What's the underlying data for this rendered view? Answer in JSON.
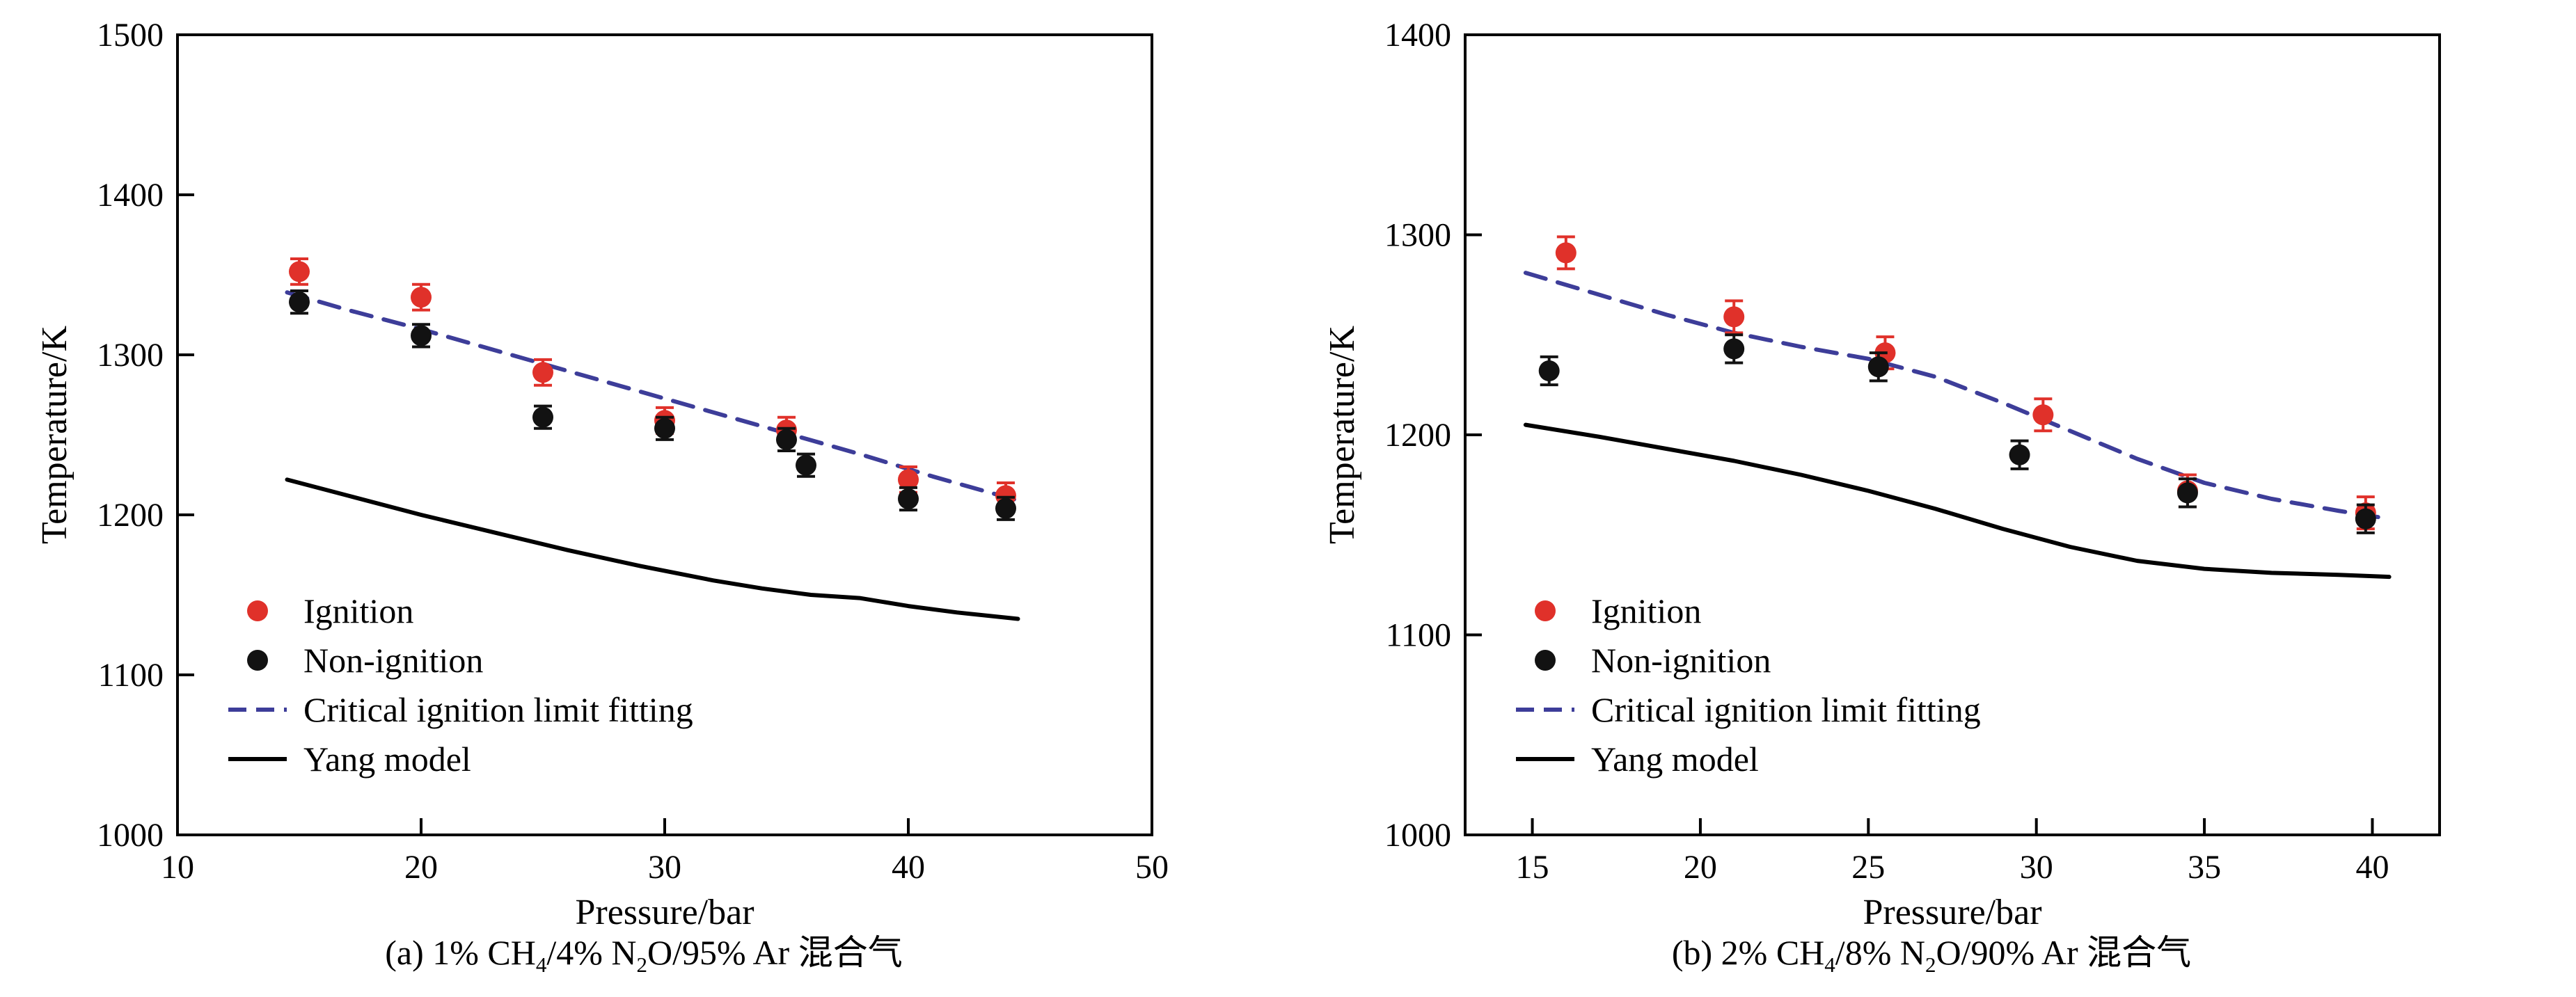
{
  "page": {
    "background": "#ffffff"
  },
  "colors": {
    "ignition": "#e0312a",
    "non_ignition": "#121212",
    "fitting": "#3d3d99",
    "yang": "#000000"
  },
  "chart_data": [
    {
      "type": "scatter-line",
      "panel": "a",
      "caption_text": "(a) 1% CH4/4% N2O/95% Ar 混合气",
      "caption_parts": [
        {
          "t": "(a) 1% CH"
        },
        {
          "t": "4",
          "sub": true
        },
        {
          "t": "/4% N"
        },
        {
          "t": "2",
          "sub": true
        },
        {
          "t": "O/95% Ar 混合气"
        }
      ],
      "xlabel": "Pressure/bar",
      "ylabel": "Temperature/K",
      "xlim": [
        10,
        50
      ],
      "ylim": [
        1000,
        1500
      ],
      "xticks": [
        10,
        20,
        30,
        40,
        50
      ],
      "yticks": [
        1000,
        1100,
        1200,
        1300,
        1400,
        1500
      ],
      "grid": false,
      "legend_position": "lower-left-inside",
      "legend": [
        {
          "label": "Ignition",
          "marker": "circle",
          "color": "#e0312a",
          "dash": false
        },
        {
          "label": "Non-ignition",
          "marker": "circle",
          "color": "#121212",
          "dash": false
        },
        {
          "label": "Critical ignition limit fitting",
          "marker": "line",
          "color": "#3d3d99",
          "dash": true
        },
        {
          "label": "Yang model",
          "marker": "line",
          "color": "#000000",
          "dash": false
        }
      ],
      "series": [
        {
          "name": "Ignition",
          "type": "scatter",
          "color": "#e0312a",
          "err": 8,
          "points": [
            [
              15,
              1352
            ],
            [
              20,
              1336
            ],
            [
              25,
              1289
            ],
            [
              30,
              1259
            ],
            [
              35,
              1253
            ],
            [
              40,
              1222
            ],
            [
              44,
              1212
            ]
          ]
        },
        {
          "name": "Non-ignition",
          "type": "scatter",
          "color": "#121212",
          "err": 7,
          "points": [
            [
              15,
              1333
            ],
            [
              20,
              1312
            ],
            [
              25,
              1261
            ],
            [
              30,
              1254
            ],
            [
              35,
              1247
            ],
            [
              35.8,
              1231
            ],
            [
              40,
              1210
            ],
            [
              44,
              1204
            ]
          ]
        },
        {
          "name": "Critical ignition limit fitting",
          "type": "line",
          "color": "#3d3d99",
          "dash": true,
          "points": [
            [
              14.5,
              1339
            ],
            [
              17,
              1328
            ],
            [
              20,
              1316
            ],
            [
              23,
              1303
            ],
            [
              26,
              1290
            ],
            [
              29,
              1277
            ],
            [
              32,
              1264
            ],
            [
              35,
              1251
            ],
            [
              38,
              1238
            ],
            [
              41,
              1224
            ],
            [
              44.5,
              1209
            ]
          ]
        },
        {
          "name": "Yang model",
          "type": "line",
          "color": "#000000",
          "dash": false,
          "points": [
            [
              14.5,
              1222
            ],
            [
              17,
              1212
            ],
            [
              20,
              1200
            ],
            [
              23,
              1189
            ],
            [
              26,
              1178
            ],
            [
              29,
              1168
            ],
            [
              32,
              1159
            ],
            [
              34,
              1154
            ],
            [
              36,
              1150
            ],
            [
              38,
              1148
            ],
            [
              40,
              1143
            ],
            [
              42,
              1139
            ],
            [
              44.5,
              1135
            ]
          ]
        }
      ]
    },
    {
      "type": "scatter-line",
      "panel": "b",
      "caption_text": "(b) 2% CH4/8% N2O/90% Ar 混合气",
      "caption_parts": [
        {
          "t": "(b) 2% CH"
        },
        {
          "t": "4",
          "sub": true
        },
        {
          "t": "/8% N"
        },
        {
          "t": "2",
          "sub": true
        },
        {
          "t": "O/90% Ar 混合气"
        }
      ],
      "xlabel": "Pressure/bar",
      "ylabel": "Temperature/K",
      "xlim": [
        13,
        42
      ],
      "ylim": [
        1000,
        1400
      ],
      "xticks": [
        15,
        20,
        25,
        30,
        35,
        40
      ],
      "yticks": [
        1000,
        1100,
        1200,
        1300,
        1400
      ],
      "grid": false,
      "legend_position": "lower-left-inside",
      "legend": [
        {
          "label": "Ignition",
          "marker": "circle",
          "color": "#e0312a",
          "dash": false
        },
        {
          "label": "Non-ignition",
          "marker": "circle",
          "color": "#121212",
          "dash": false
        },
        {
          "label": "Critical ignition limit fitting",
          "marker": "line",
          "color": "#3d3d99",
          "dash": true
        },
        {
          "label": "Yang model",
          "marker": "line",
          "color": "#000000",
          "dash": false
        }
      ],
      "series": [
        {
          "name": "Ignition",
          "type": "scatter",
          "color": "#e0312a",
          "err": 8,
          "points": [
            [
              16,
              1291
            ],
            [
              21,
              1259
            ],
            [
              25.5,
              1241
            ],
            [
              30.2,
              1210
            ],
            [
              34.5,
              1172
            ],
            [
              39.8,
              1161
            ]
          ]
        },
        {
          "name": "Non-ignition",
          "type": "scatter",
          "color": "#121212",
          "err": 7,
          "points": [
            [
              15.5,
              1232
            ],
            [
              21,
              1243
            ],
            [
              25.3,
              1234
            ],
            [
              29.5,
              1190
            ],
            [
              34.5,
              1171
            ],
            [
              39.8,
              1158
            ]
          ]
        },
        {
          "name": "Critical ignition limit fitting",
          "type": "line",
          "color": "#3d3d99",
          "dash": true,
          "points": [
            [
              14.8,
              1281
            ],
            [
              17,
              1270
            ],
            [
              19,
              1260
            ],
            [
              21,
              1251
            ],
            [
              23,
              1244
            ],
            [
              25,
              1238
            ],
            [
              27,
              1229
            ],
            [
              29,
              1216
            ],
            [
              31,
              1202
            ],
            [
              33,
              1188
            ],
            [
              35,
              1176
            ],
            [
              37,
              1168
            ],
            [
              39,
              1162
            ],
            [
              40.5,
              1158
            ]
          ]
        },
        {
          "name": "Yang model",
          "type": "line",
          "color": "#000000",
          "dash": false,
          "points": [
            [
              14.8,
              1205
            ],
            [
              17,
              1199
            ],
            [
              19,
              1193
            ],
            [
              21,
              1187
            ],
            [
              23,
              1180
            ],
            [
              25,
              1172
            ],
            [
              27,
              1163
            ],
            [
              29,
              1153
            ],
            [
              31,
              1144
            ],
            [
              33,
              1137
            ],
            [
              35,
              1133
            ],
            [
              37,
              1131
            ],
            [
              39,
              1130
            ],
            [
              40.5,
              1129
            ]
          ]
        }
      ]
    }
  ]
}
